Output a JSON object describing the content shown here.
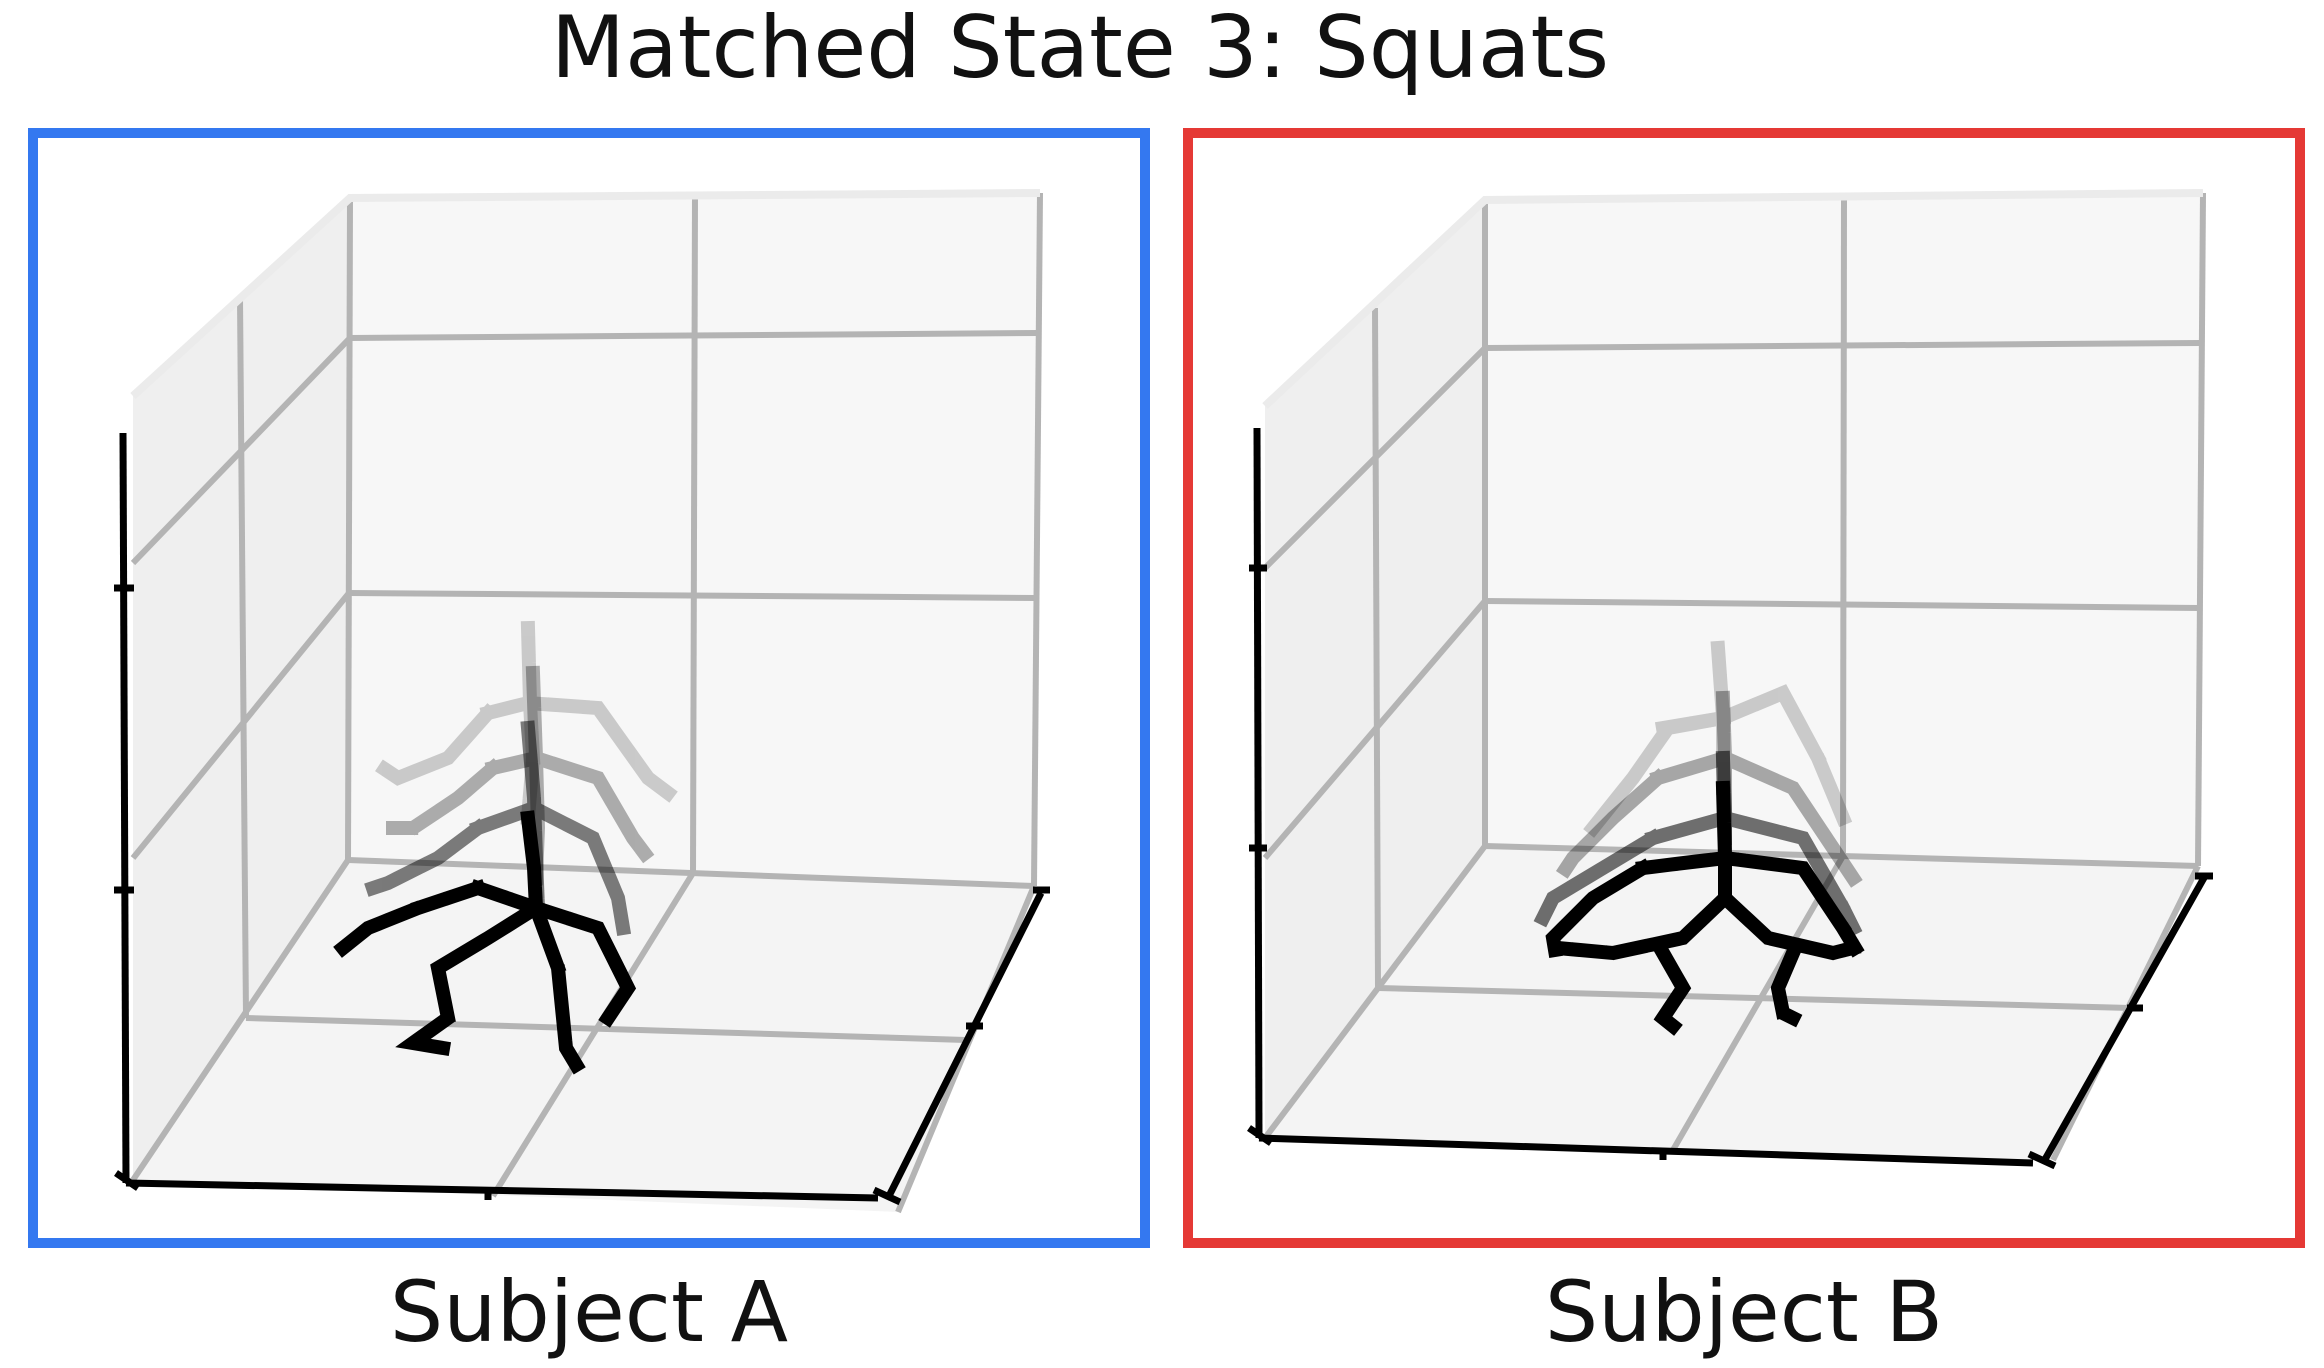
{
  "figure": {
    "title": "Matched State 3: Squats",
    "colors": {
      "subject_a_border": "#3478f0",
      "subject_b_border": "#e53935",
      "grid": "#b4b4b4",
      "axis": "#000000",
      "skeleton": "#000000",
      "pane": "#f0f0f0"
    }
  },
  "panels": [
    {
      "caption": "Subject A",
      "view": "3D axes with overlaid skeleton poses",
      "pose_frames": 4
    },
    {
      "caption": "Subject B",
      "view": "3D axes with overlaid skeleton poses",
      "pose_frames": 4
    }
  ]
}
